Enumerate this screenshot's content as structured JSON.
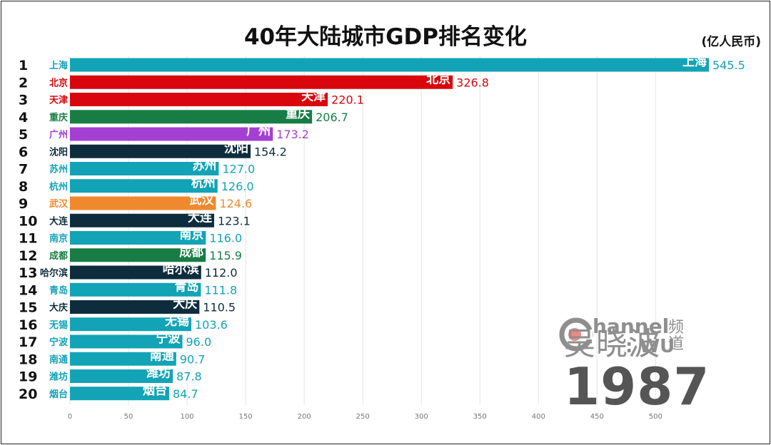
{
  "header": {
    "title": "40年大陆城市GDP排名变化",
    "unit": "(亿人民币)"
  },
  "logo": {
    "text_channel": "hannel",
    "text_wu": ": WU",
    "name": "吴晓波",
    "pindao": "频道"
  },
  "year": "1987",
  "chart_data": {
    "type": "bar",
    "orientation": "horizontal",
    "title": "40年大陆城市GDP排名变化",
    "unit": "(亿人民币)",
    "xlim": [
      0,
      545.5
    ],
    "ticks": [
      0,
      50,
      100,
      150,
      200,
      250,
      300,
      350,
      400,
      450,
      500
    ],
    "grid": true,
    "year": "1987",
    "ranks": [
      1,
      2,
      3,
      4,
      5,
      6,
      7,
      8,
      9,
      10,
      11,
      12,
      13,
      14,
      15,
      16,
      17,
      18,
      19,
      20
    ],
    "categories": [
      "上海",
      "北京",
      "天津",
      "重庆",
      "广州",
      "沈阳",
      "苏州",
      "杭州",
      "武汉",
      "大连",
      "南京",
      "成都",
      "哈尔滨",
      "青岛",
      "大庆",
      "无锡",
      "宁波",
      "南通",
      "潍坊",
      "烟台"
    ],
    "values": [
      545.5,
      326.8,
      220.1,
      206.7,
      173.2,
      154.2,
      127.0,
      126.0,
      124.6,
      123.1,
      116.0,
      115.9,
      112.0,
      111.8,
      110.5,
      103.6,
      96.0,
      90.7,
      87.8,
      84.7
    ],
    "value_labels": [
      "545.5",
      "326.8",
      "220.1",
      "206.7",
      "173.2",
      "154.2",
      "127.0",
      "126.0",
      "124.6",
      "123.1",
      "116.0",
      "115.9",
      "112.0",
      "111.8",
      "110.5",
      "103.6",
      "96.0",
      "90.7",
      "87.8",
      "84.7"
    ],
    "colors": [
      "#12a3b6",
      "#d9060d",
      "#d9060d",
      "#177d45",
      "#a43fd3",
      "#0d2d3d",
      "#12a3b6",
      "#12a3b6",
      "#f0882e",
      "#0d2d3d",
      "#12a3b6",
      "#177d45",
      "#0d2d3d",
      "#12a3b6",
      "#0d2d3d",
      "#12a3b6",
      "#12a3b6",
      "#12a3b6",
      "#12a3b6",
      "#12a3b6"
    ]
  }
}
